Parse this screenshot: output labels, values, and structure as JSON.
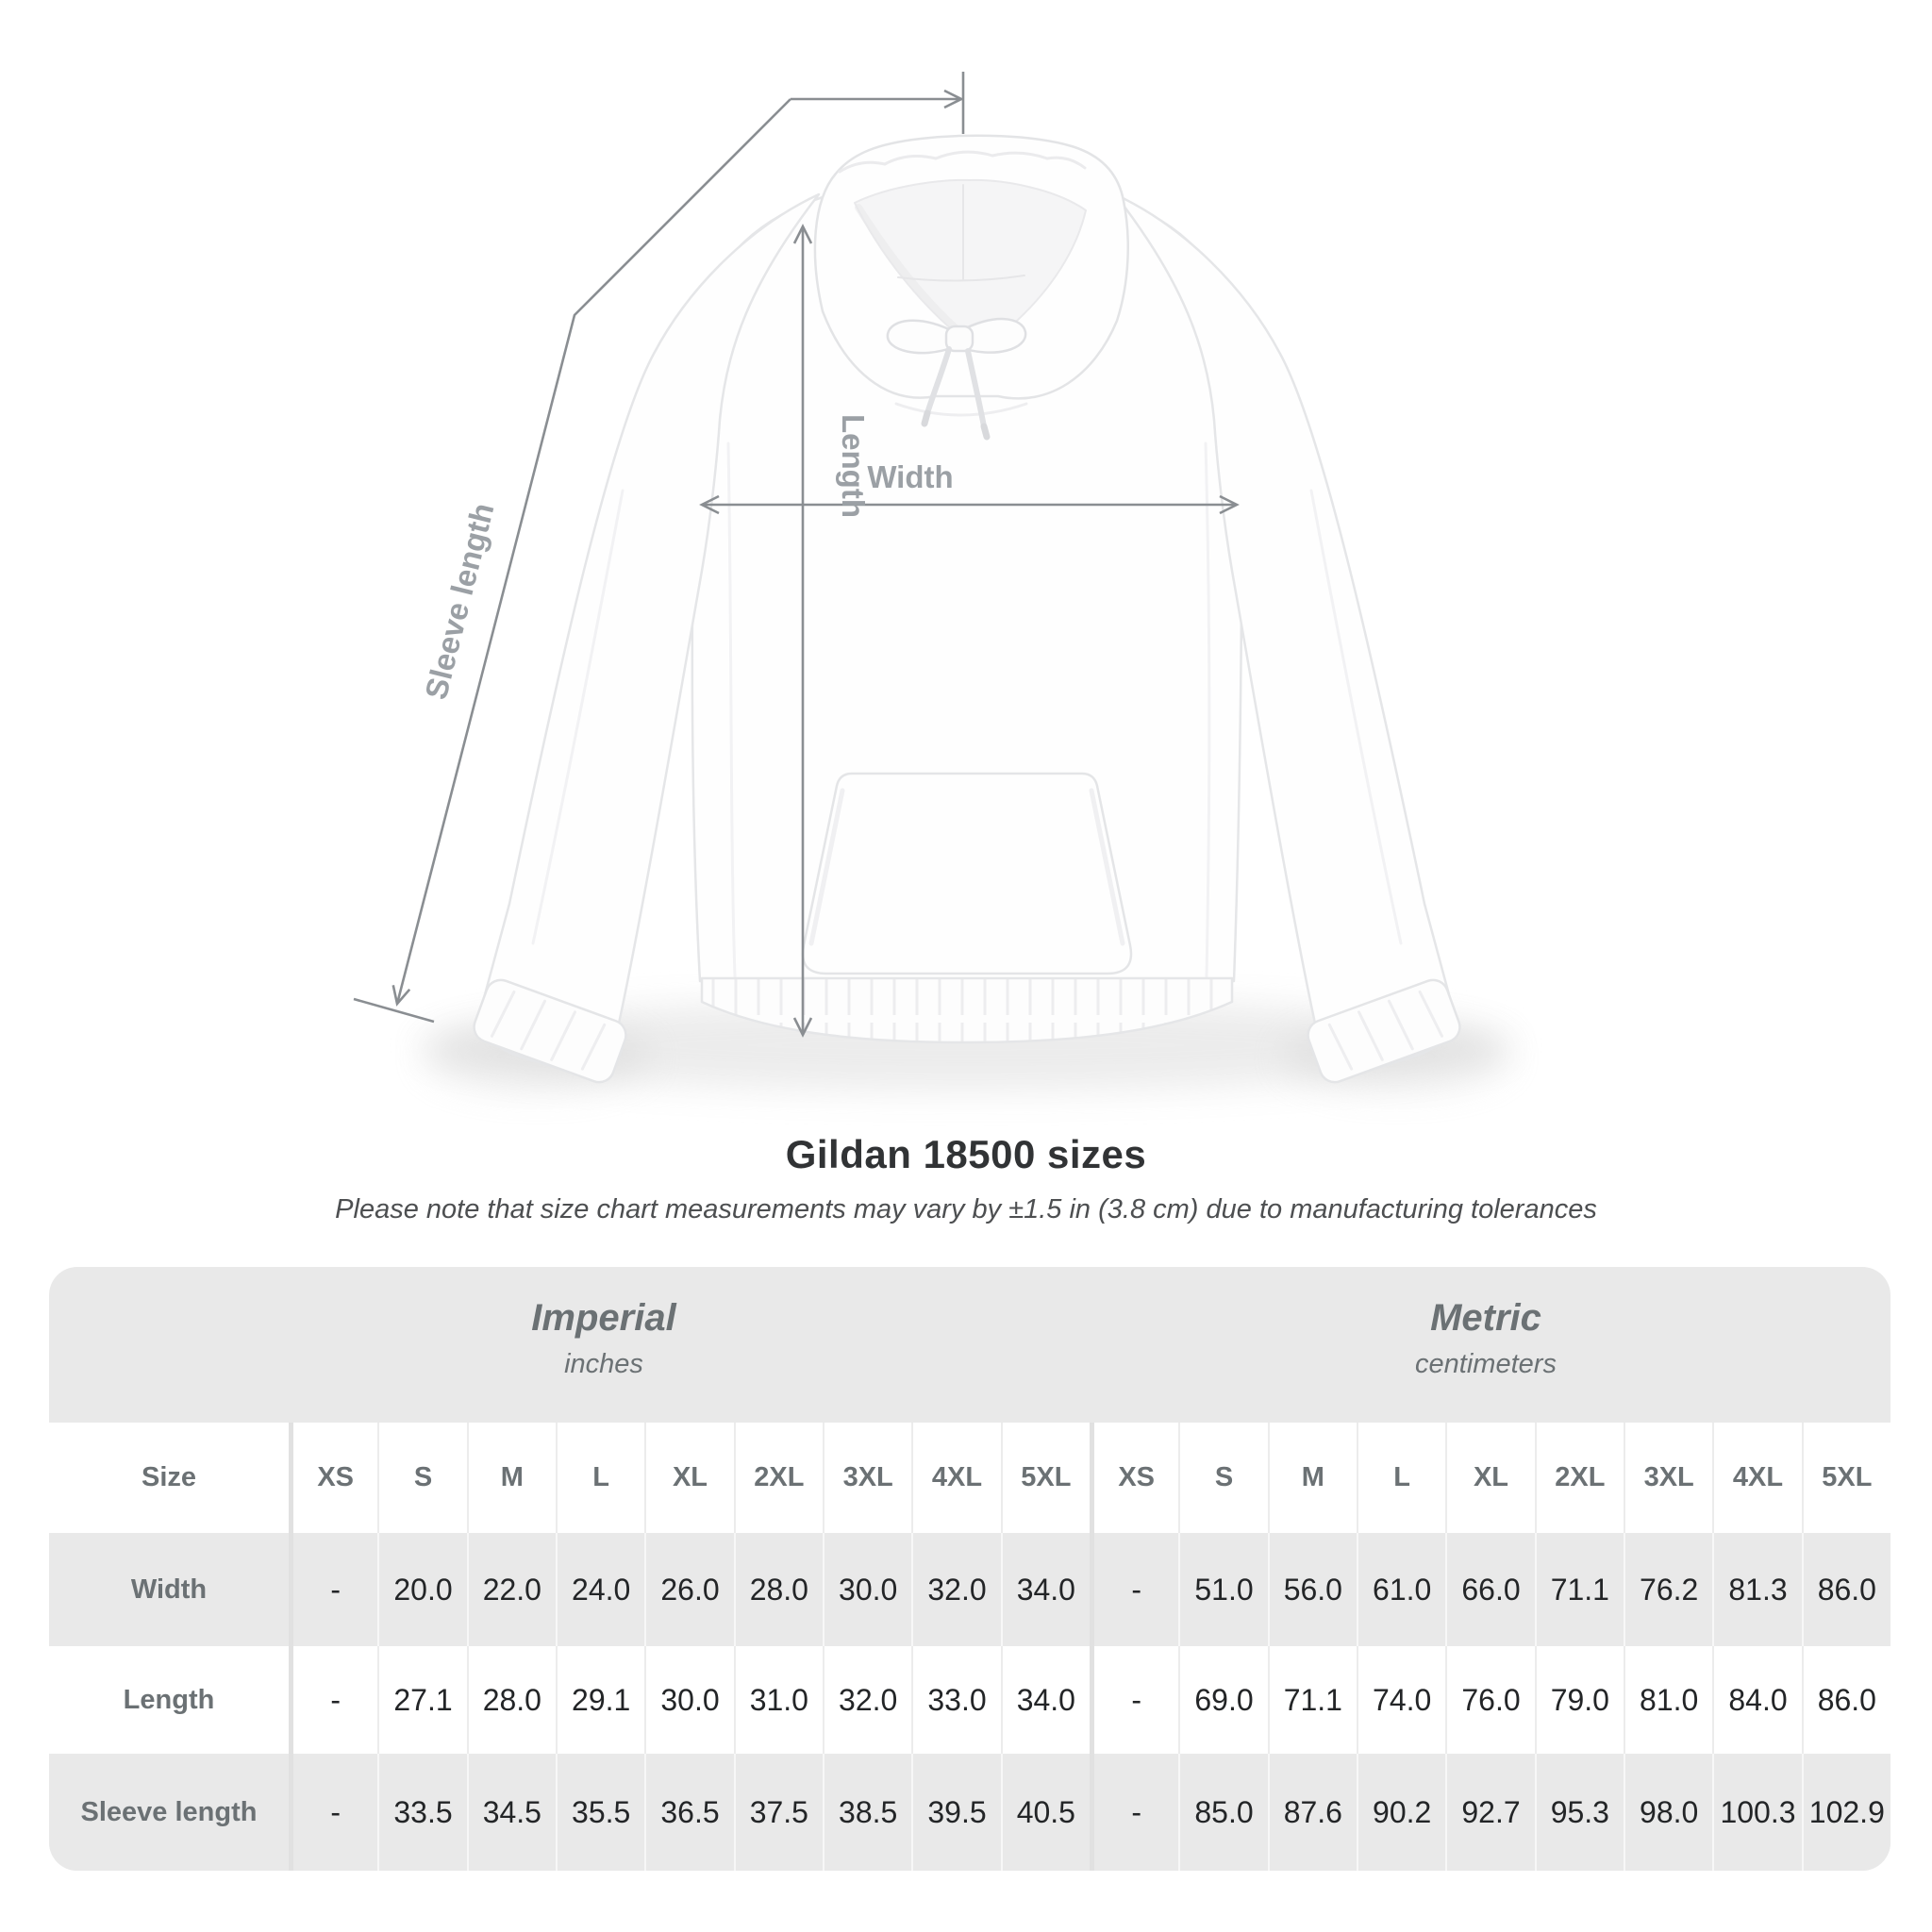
{
  "title": "Gildan 18500 sizes",
  "subtitle": "Please note that size chart measurements may vary by ±1.5 in (3.8 cm) due to manufacturing tolerances",
  "diagram": {
    "length_label": "Length",
    "width_label": "Width",
    "sleeve_label": "Sleeve length"
  },
  "chart_data": {
    "type": "table",
    "title": "Gildan 18500 sizes",
    "units_headers": [
      {
        "label": "Imperial",
        "sublabel": "inches"
      },
      {
        "label": "Metric",
        "sublabel": "centimeters"
      }
    ],
    "size_header": "Size",
    "sizes": [
      "XS",
      "S",
      "M",
      "L",
      "XL",
      "2XL",
      "3XL",
      "4XL",
      "5XL"
    ],
    "rows": [
      {
        "label": "Width",
        "imperial": [
          "-",
          "20.0",
          "22.0",
          "24.0",
          "26.0",
          "28.0",
          "30.0",
          "32.0",
          "34.0"
        ],
        "metric": [
          "-",
          "51.0",
          "56.0",
          "61.0",
          "66.0",
          "71.1",
          "76.2",
          "81.3",
          "86.0"
        ]
      },
      {
        "label": "Length",
        "imperial": [
          "-",
          "27.1",
          "28.0",
          "29.1",
          "30.0",
          "31.0",
          "32.0",
          "33.0",
          "34.0"
        ],
        "metric": [
          "-",
          "69.0",
          "71.1",
          "74.0",
          "76.0",
          "79.0",
          "81.0",
          "84.0",
          "86.0"
        ]
      },
      {
        "label": "Sleeve length",
        "imperial": [
          "-",
          "33.5",
          "34.5",
          "35.5",
          "36.5",
          "37.5",
          "38.5",
          "39.5",
          "40.5"
        ],
        "metric": [
          "-",
          "85.0",
          "87.6",
          "90.2",
          "92.7",
          "95.3",
          "98.0",
          "100.3",
          "102.9"
        ]
      }
    ]
  },
  "colors": {
    "table_gray": "#e9e9e9",
    "label_gray": "#6b7174",
    "value_dark": "#232527",
    "annotation_text": "#9ba0a5",
    "annotation_line": "#8a8e92",
    "title_dark": "#313335"
  }
}
